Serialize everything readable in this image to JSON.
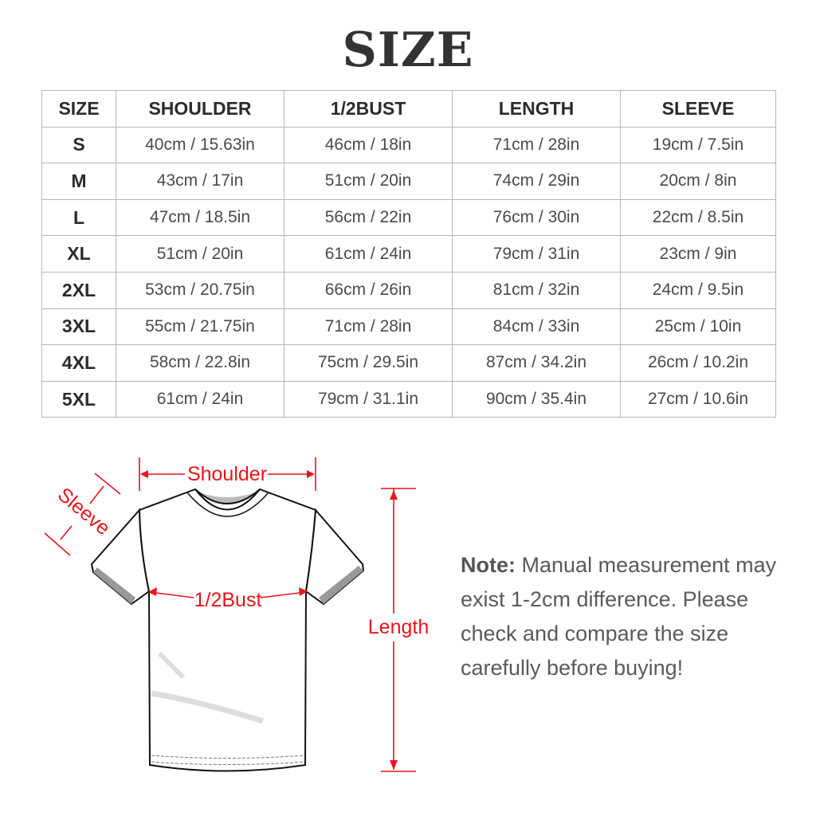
{
  "title": "SIZE",
  "table": {
    "headers": [
      "SIZE",
      "SHOULDER",
      "1/2BUST",
      "LENGTH",
      "SLEEVE"
    ],
    "rows": [
      [
        "S",
        "40cm / 15.63in",
        "46cm / 18in",
        "71cm / 28in",
        "19cm / 7.5in"
      ],
      [
        "M",
        "43cm / 17in",
        "51cm / 20in",
        "74cm / 29in",
        "20cm / 8in"
      ],
      [
        "L",
        "47cm / 18.5in",
        "56cm / 22in",
        "76cm / 30in",
        "22cm / 8.5in"
      ],
      [
        "XL",
        "51cm / 20in",
        "61cm / 24in",
        "79cm / 31in",
        "23cm / 9in"
      ],
      [
        "2XL",
        "53cm / 20.75in",
        "66cm / 26in",
        "81cm / 32in",
        "24cm / 9.5in"
      ],
      [
        "3XL",
        "55cm / 21.75in",
        "71cm / 28in",
        "84cm / 33in",
        "25cm / 10in"
      ],
      [
        "4XL",
        "58cm / 22.8in",
        "75cm / 29.5in",
        "87cm / 34.2in",
        "26cm / 10.2in"
      ],
      [
        "5XL",
        "61cm / 24in",
        "79cm / 31.1in",
        "90cm / 35.4in",
        "27cm / 10.6in"
      ]
    ]
  },
  "diagram": {
    "shoulder": "Shoulder",
    "sleeve": "Sleeve",
    "bust": "1/2Bust",
    "length": "Length",
    "accent_color": "#e8141b"
  },
  "note": {
    "label": "Note:",
    "text": "Manual measurement may exist 1-2cm difference. Please check and compare the size carefully before buying!"
  }
}
